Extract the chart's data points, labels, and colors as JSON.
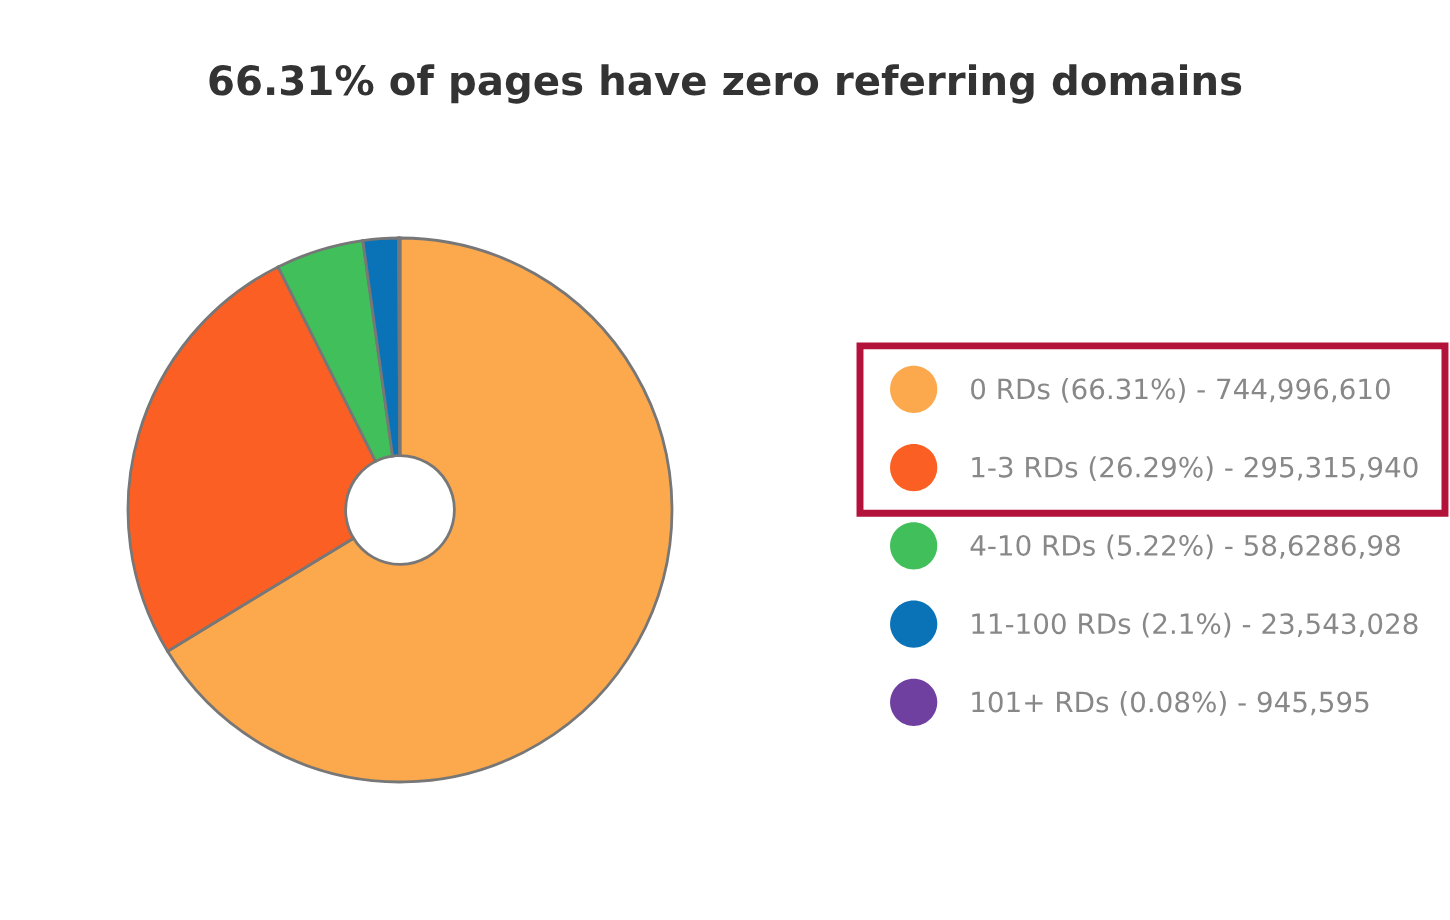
{
  "chart_data": {
    "type": "donut",
    "title": "66.31% of pages have zero referring domains",
    "categories": [
      "0 RDs (66.31%) - 744,996,610",
      "1-3 RDs (26.29%) - 295,315,940",
      "4-10 RDs (5.22%) - 58,6286,98",
      "11-100 RDs (2.1%) - 23,543,028",
      "101+ RDs (0.08%) - 945,595"
    ],
    "values": [
      66.31,
      26.29,
      5.22,
      2.1,
      0.08
    ],
    "colors": [
      "#fca84c",
      "#fc5f24",
      "#40bf5a",
      "#0a73b8",
      "#7040a0"
    ],
    "legend": "right"
  }
}
